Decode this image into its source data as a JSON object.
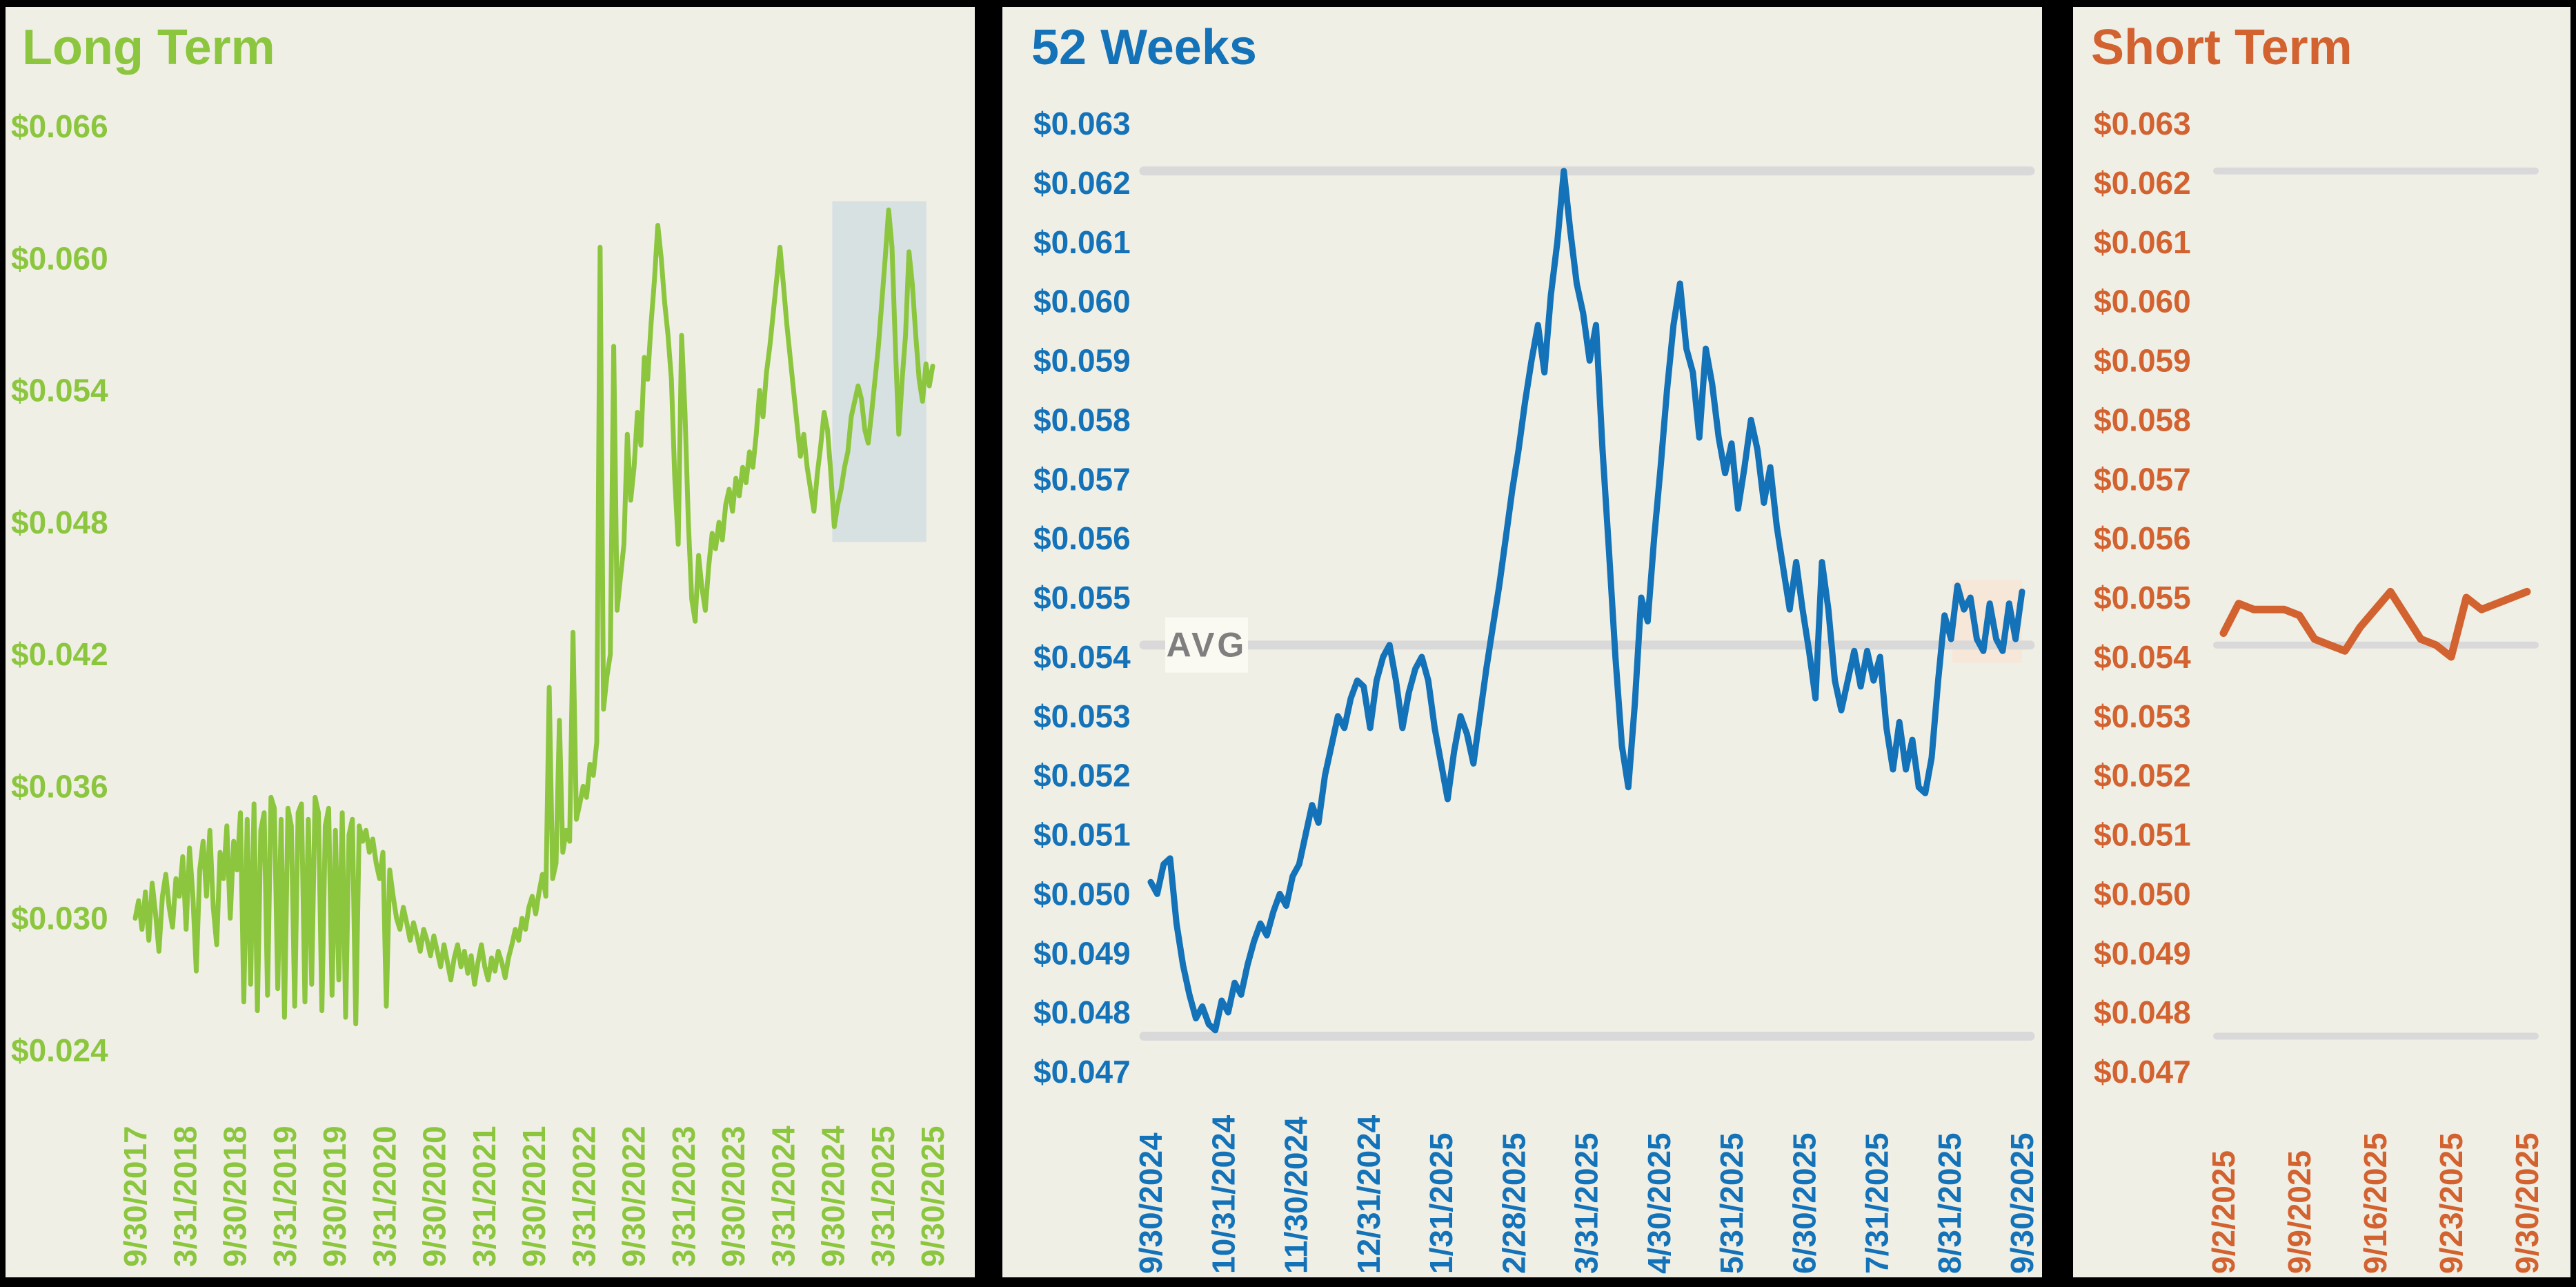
{
  "app": {
    "background_color": "#F0EFE6",
    "frame_color": "#000000"
  },
  "chart_data": [
    {
      "type": "line",
      "title": "Long Term",
      "accent_color": "#8CC63F",
      "line_color": "#8CC63F",
      "grid": "off",
      "legend": "none",
      "ylim": [
        0.024,
        0.066
      ],
      "y_tick_labels": [
        "$0.066",
        "$0.060",
        "$0.054",
        "$0.048",
        "$0.042",
        "$0.036",
        "$0.030",
        "$0.024"
      ],
      "x_tick_labels": [
        "9/30/2017",
        "3/31/2018",
        "9/30/2018",
        "3/31/2019",
        "9/30/2019",
        "3/31/2020",
        "9/30/2020",
        "3/31/2021",
        "9/30/2021",
        "3/31/2022",
        "9/30/2022",
        "3/31/2023",
        "9/30/2023",
        "3/31/2024",
        "9/30/2024",
        "3/31/2025",
        "9/30/2025"
      ],
      "highlight_window": {
        "x_start_frac": 0.874,
        "x_end_frac": 0.992,
        "y_top": 0.0626,
        "y_bottom": 0.0471,
        "color": "#D8E1E2"
      },
      "series": [
        {
          "name": "price",
          "values": [
            0.03,
            0.0308,
            0.0295,
            0.0312,
            0.029,
            0.0316,
            0.0302,
            0.0285,
            0.031,
            0.032,
            0.0305,
            0.0296,
            0.0318,
            0.031,
            0.0328,
            0.0295,
            0.0332,
            0.031,
            0.0276,
            0.0322,
            0.0335,
            0.031,
            0.034,
            0.0305,
            0.0288,
            0.033,
            0.0318,
            0.0342,
            0.03,
            0.0335,
            0.0322,
            0.0348,
            0.0262,
            0.0345,
            0.027,
            0.0352,
            0.0258,
            0.034,
            0.0348,
            0.0265,
            0.0355,
            0.035,
            0.0268,
            0.0345,
            0.0255,
            0.035,
            0.0342,
            0.026,
            0.0348,
            0.0352,
            0.0262,
            0.0345,
            0.027,
            0.0355,
            0.0348,
            0.0258,
            0.0342,
            0.035,
            0.0265,
            0.034,
            0.0272,
            0.0348,
            0.0255,
            0.0338,
            0.0345,
            0.0252,
            0.0342,
            0.0335,
            0.034,
            0.033,
            0.0336,
            0.0325,
            0.0318,
            0.033,
            0.026,
            0.0322,
            0.031,
            0.03,
            0.0295,
            0.0305,
            0.0298,
            0.029,
            0.0298,
            0.0292,
            0.0285,
            0.0295,
            0.029,
            0.0283,
            0.0292,
            0.0285,
            0.0278,
            0.0288,
            0.028,
            0.0272,
            0.0282,
            0.0288,
            0.0278,
            0.0285,
            0.0275,
            0.0283,
            0.027,
            0.028,
            0.0288,
            0.0278,
            0.0272,
            0.0282,
            0.0276,
            0.0285,
            0.028,
            0.0273,
            0.0282,
            0.0288,
            0.0295,
            0.029,
            0.03,
            0.0295,
            0.0305,
            0.031,
            0.0302,
            0.0312,
            0.032,
            0.031,
            0.0405,
            0.0318,
            0.0325,
            0.039,
            0.033,
            0.034,
            0.0335,
            0.043,
            0.0345,
            0.0352,
            0.036,
            0.0355,
            0.037,
            0.0365,
            0.038,
            0.0605,
            0.0395,
            0.041,
            0.042,
            0.056,
            0.044,
            0.0455,
            0.047,
            0.052,
            0.049,
            0.0505,
            0.053,
            0.0515,
            0.0555,
            0.0545,
            0.057,
            0.059,
            0.0615,
            0.06,
            0.058,
            0.0565,
            0.0545,
            0.05,
            0.047,
            0.0565,
            0.053,
            0.048,
            0.0445,
            0.0435,
            0.0465,
            0.045,
            0.044,
            0.046,
            0.0475,
            0.0468,
            0.048,
            0.0472,
            0.0488,
            0.0495,
            0.0485,
            0.05,
            0.0492,
            0.0505,
            0.0498,
            0.0512,
            0.0505,
            0.052,
            0.054,
            0.0528,
            0.0548,
            0.056,
            0.0575,
            0.059,
            0.0605,
            0.0588,
            0.057,
            0.0555,
            0.054,
            0.0525,
            0.051,
            0.052,
            0.0505,
            0.0495,
            0.0485,
            0.0502,
            0.0515,
            0.053,
            0.0522,
            0.0502,
            0.0478,
            0.0488,
            0.0495,
            0.0505,
            0.0512,
            0.0528,
            0.0535,
            0.0542,
            0.0536,
            0.0522,
            0.0516,
            0.053,
            0.0545,
            0.056,
            0.058,
            0.06,
            0.0622,
            0.0605,
            0.056,
            0.052,
            0.0545,
            0.0565,
            0.0603,
            0.0588,
            0.0565,
            0.0545,
            0.0535,
            0.0552,
            0.0542,
            0.0551
          ]
        }
      ]
    },
    {
      "type": "line",
      "title": "52 Weeks",
      "accent_color": "#1372B8",
      "line_color": "#1372B8",
      "grid": "off",
      "legend": "none",
      "ylim": [
        0.047,
        0.063
      ],
      "y_tick_labels": [
        "$0.063",
        "$0.062",
        "$0.061",
        "$0.060",
        "$0.059",
        "$0.058",
        "$0.057",
        "$0.056",
        "$0.055",
        "$0.054",
        "$0.053",
        "$0.052",
        "$0.051",
        "$0.050",
        "$0.049",
        "$0.048",
        "$0.047"
      ],
      "x_tick_labels": [
        "9/30/2024",
        "10/31/2024",
        "11/30/2024",
        "12/31/2024",
        "1/31/2025",
        "2/28/2025",
        "3/31/2025",
        "4/30/2025",
        "5/31/2025",
        "6/30/2025",
        "7/31/2025",
        "8/31/2025",
        "9/30/2025"
      ],
      "reference_lines": {
        "max": 0.0622,
        "min": 0.0476,
        "avg": 0.0542,
        "avg_label": "AVG",
        "line_color": "#D9D9D9",
        "avg_label_color": "#7F7F7F",
        "avg_label_bg": "#FAF9F2"
      },
      "highlight_window": {
        "x_start_frac": 0.92,
        "x_end_frac": 1.0,
        "y_top": 0.0553,
        "y_bottom": 0.0539,
        "color": "#F6E7D8"
      },
      "series": [
        {
          "name": "price",
          "values": [
            0.0502,
            0.05,
            0.0505,
            0.0506,
            0.0495,
            0.0488,
            0.0483,
            0.0479,
            0.0481,
            0.0478,
            0.0477,
            0.0482,
            0.048,
            0.0485,
            0.0483,
            0.0488,
            0.0492,
            0.0495,
            0.0493,
            0.0497,
            0.05,
            0.0498,
            0.0503,
            0.0505,
            0.051,
            0.0515,
            0.0512,
            0.052,
            0.0525,
            0.053,
            0.0528,
            0.0533,
            0.0536,
            0.0535,
            0.0528,
            0.0536,
            0.054,
            0.0542,
            0.0536,
            0.0528,
            0.0534,
            0.0538,
            0.054,
            0.0536,
            0.0528,
            0.0522,
            0.0516,
            0.0524,
            0.053,
            0.0527,
            0.0522,
            0.053,
            0.0538,
            0.0545,
            0.0552,
            0.056,
            0.0568,
            0.0575,
            0.0583,
            0.059,
            0.0596,
            0.0588,
            0.0601,
            0.061,
            0.0622,
            0.0612,
            0.0603,
            0.0598,
            0.059,
            0.0596,
            0.0575,
            0.0558,
            0.054,
            0.0525,
            0.0518,
            0.0532,
            0.055,
            0.0546,
            0.056,
            0.0572,
            0.0585,
            0.0596,
            0.0603,
            0.0592,
            0.0588,
            0.0577,
            0.0592,
            0.0586,
            0.0577,
            0.0571,
            0.0576,
            0.0565,
            0.0572,
            0.058,
            0.0575,
            0.0566,
            0.0572,
            0.0562,
            0.0555,
            0.0548,
            0.0556,
            0.0548,
            0.0541,
            0.0533,
            0.0556,
            0.0548,
            0.0536,
            0.0531,
            0.0536,
            0.0541,
            0.0535,
            0.0541,
            0.0536,
            0.054,
            0.0528,
            0.0521,
            0.0529,
            0.0521,
            0.0526,
            0.0518,
            0.0517,
            0.0523,
            0.0536,
            0.0547,
            0.0543,
            0.0552,
            0.0548,
            0.055,
            0.0543,
            0.0541,
            0.0549,
            0.0543,
            0.0541,
            0.0549,
            0.0543,
            0.0551
          ]
        }
      ]
    },
    {
      "type": "line",
      "title": "Short Term",
      "accent_color": "#D2622F",
      "line_color": "#D2622F",
      "grid": "off",
      "legend": "none",
      "ylim": [
        0.047,
        0.063
      ],
      "y_tick_labels": [
        "$0.063",
        "$0.062",
        "$0.061",
        "$0.060",
        "$0.059",
        "$0.058",
        "$0.057",
        "$0.056",
        "$0.055",
        "$0.054",
        "$0.053",
        "$0.052",
        "$0.051",
        "$0.050",
        "$0.049",
        "$0.048",
        "$0.047"
      ],
      "x_tick_labels": [
        "9/2/2025",
        "9/9/2025",
        "9/16/2025",
        "9/23/2025",
        "9/30/2025"
      ],
      "reference_lines": {
        "max": 0.0622,
        "min": 0.0476,
        "avg": 0.0542,
        "avg_label": "",
        "line_color": "#D9D9D9"
      },
      "x_dates": [
        "9/2/2025",
        "9/3/2025",
        "9/4/2025",
        "9/5/2025",
        "9/8/2025",
        "9/9/2025",
        "9/10/2025",
        "9/11/2025",
        "9/12/2025",
        "9/15/2025",
        "9/16/2025",
        "9/17/2025",
        "9/18/2025",
        "9/19/2025",
        "9/22/2025",
        "9/23/2025",
        "9/24/2025",
        "9/25/2025",
        "9/26/2025",
        "9/29/2025",
        "9/30/2025"
      ],
      "series": [
        {
          "name": "price",
          "values": [
            0.0544,
            0.0549,
            0.0548,
            0.0548,
            0.0548,
            0.0547,
            0.0543,
            0.0542,
            0.0541,
            0.0545,
            0.0548,
            0.0551,
            0.0547,
            0.0543,
            0.0542,
            0.054,
            0.055,
            0.0548,
            0.0549,
            0.055,
            0.0551
          ]
        }
      ]
    }
  ]
}
